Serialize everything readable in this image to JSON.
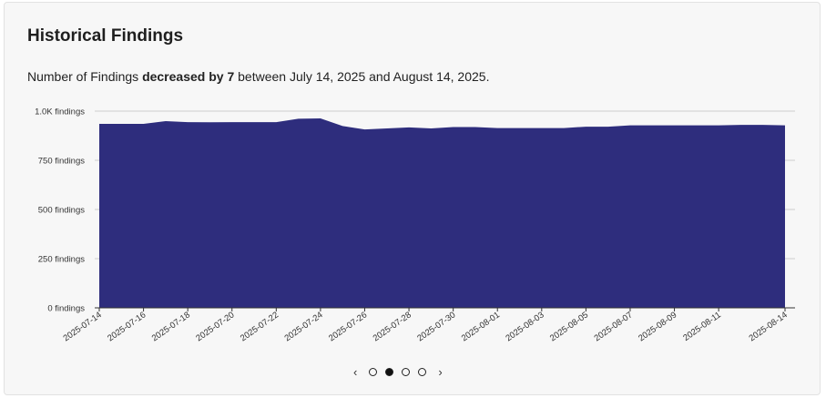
{
  "card": {
    "title": "Historical Findings",
    "summary_prefix": "Number of Findings ",
    "summary_bold": "decreased by 7",
    "summary_suffix": " between July 14, 2025 and August 14, 2025."
  },
  "pager": {
    "prev_icon": "chevron-left-icon",
    "prev": "‹",
    "next_icon": "chevron-right-icon",
    "next": "›",
    "pages": 4,
    "active": 1
  },
  "chart_data": {
    "type": "area",
    "title": "",
    "xlabel": "",
    "ylabel": "",
    "ylim": [
      0,
      1000
    ],
    "grid": true,
    "color": "#2e2d7d",
    "yticks": [
      {
        "value": 0,
        "label": "0 findings"
      },
      {
        "value": 250,
        "label": "250 findings"
      },
      {
        "value": 500,
        "label": "500 findings"
      },
      {
        "value": 750,
        "label": "750 findings"
      },
      {
        "value": 1000,
        "label": "1.0K findings"
      }
    ],
    "xtick_labels": [
      "2025-07-14",
      "2025-07-16",
      "2025-07-18",
      "2025-07-20",
      "2025-07-22",
      "2025-07-24",
      "2025-07-26",
      "2025-07-28",
      "2025-07-30",
      "2025-08-01",
      "2025-08-03",
      "2025-08-05",
      "2025-08-07",
      "2025-08-09",
      "2025-08-11",
      "2025-08-14"
    ],
    "x": [
      "2025-07-14",
      "2025-07-15",
      "2025-07-16",
      "2025-07-17",
      "2025-07-18",
      "2025-07-19",
      "2025-07-20",
      "2025-07-21",
      "2025-07-22",
      "2025-07-23",
      "2025-07-24",
      "2025-07-25",
      "2025-07-26",
      "2025-07-27",
      "2025-07-28",
      "2025-07-29",
      "2025-07-30",
      "2025-07-31",
      "2025-08-01",
      "2025-08-02",
      "2025-08-03",
      "2025-08-04",
      "2025-08-05",
      "2025-08-06",
      "2025-08-07",
      "2025-08-08",
      "2025-08-09",
      "2025-08-10",
      "2025-08-11",
      "2025-08-12",
      "2025-08-13",
      "2025-08-14"
    ],
    "values": [
      935,
      935,
      935,
      949,
      944,
      943,
      944,
      944,
      944,
      961,
      963,
      924,
      907,
      912,
      917,
      912,
      919,
      919,
      914,
      914,
      914,
      914,
      921,
      921,
      928,
      928,
      928,
      928,
      928,
      930,
      930,
      928
    ]
  }
}
